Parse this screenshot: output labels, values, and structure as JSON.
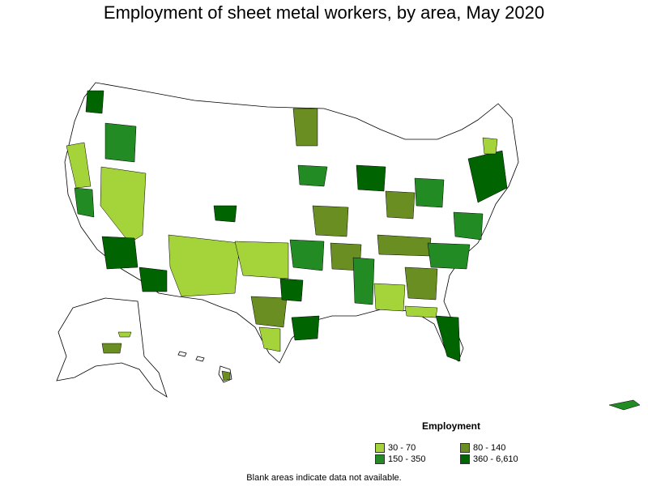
{
  "title": "Employment of sheet metal workers, by area, May 2020",
  "legend": {
    "title": "Employment",
    "items": [
      {
        "label": "30 - 70",
        "color": "#a5d43a"
      },
      {
        "label": "80 - 140",
        "color": "#6b8e23"
      },
      {
        "label": "150 - 350",
        "color": "#238b23"
      },
      {
        "label": "360 - 6,610",
        "color": "#006400"
      }
    ]
  },
  "note": "Blank areas indicate data not available."
}
